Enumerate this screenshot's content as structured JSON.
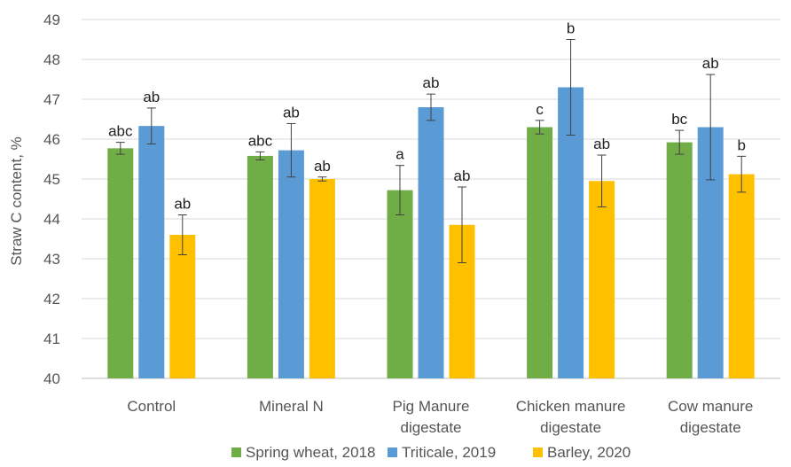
{
  "chart_data": {
    "type": "bar",
    "title": "",
    "xlabel": "",
    "ylabel": "Straw  C content, %",
    "ylim": [
      40,
      49
    ],
    "yticks": [
      40,
      41,
      42,
      43,
      44,
      45,
      46,
      47,
      48,
      49
    ],
    "grid": "horizontal",
    "legend_position": "bottom",
    "categories": [
      [
        "Control"
      ],
      [
        "Mineral N"
      ],
      [
        "Pig Manure",
        "digestate"
      ],
      [
        "Chicken manure",
        "digestate"
      ],
      [
        "Cow manure",
        "digestate"
      ]
    ],
    "series": [
      {
        "name": "Spring wheat, 2018",
        "color": "#70ad47",
        "values": [
          45.77,
          45.58,
          44.72,
          46.3,
          45.92
        ],
        "errors": [
          0.15,
          0.1,
          0.62,
          0.17,
          0.3
        ],
        "labels": [
          "abc",
          "abc",
          "a",
          "c",
          "bc"
        ]
      },
      {
        "name": "Triticale, 2019",
        "color": "#5b9bd5",
        "values": [
          46.33,
          45.72,
          46.8,
          47.3,
          46.3
        ],
        "errors": [
          0.45,
          0.67,
          0.33,
          1.2,
          1.32
        ],
        "labels": [
          "ab",
          "ab",
          "ab",
          "b",
          "ab"
        ]
      },
      {
        "name": "Barley, 2020",
        "color": "#ffc000",
        "values": [
          43.6,
          45.0,
          43.85,
          44.95,
          45.12
        ],
        "errors": [
          0.5,
          0.05,
          0.95,
          0.65,
          0.45
        ],
        "labels": [
          "ab",
          "ab",
          "ab",
          "ab",
          "b"
        ]
      }
    ]
  }
}
